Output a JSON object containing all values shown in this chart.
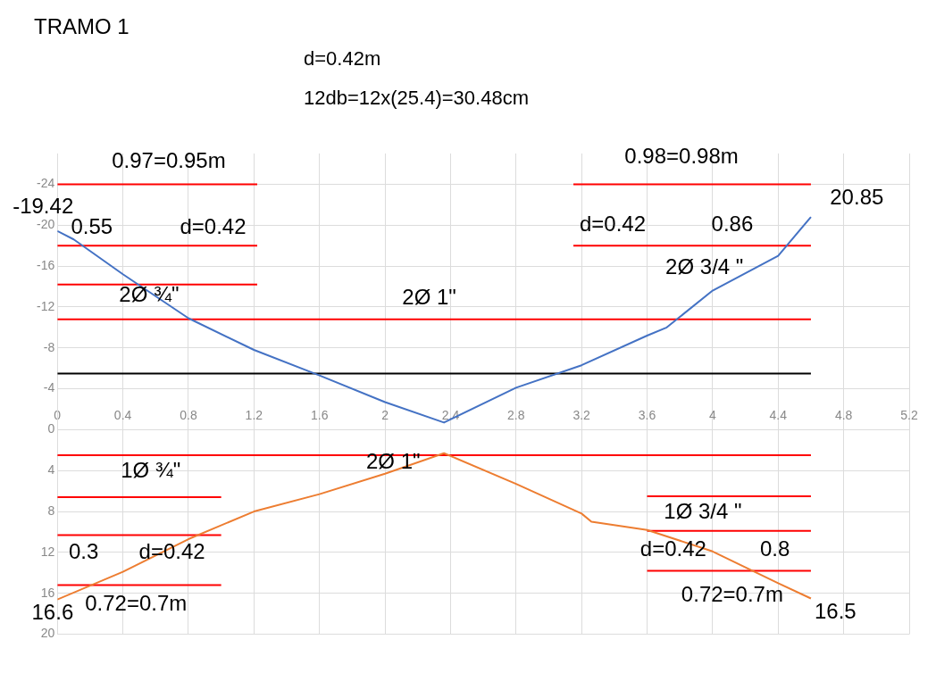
{
  "chart_data": {
    "type": "line",
    "title": "TRAMO 1",
    "subtitle": "d=0.42m\n12db=12x(25.4)=30.48cm",
    "xlim": [
      0,
      5.2
    ],
    "xticks": [
      0,
      0.4,
      0.8,
      1.2,
      1.6,
      2,
      2.4,
      2.8,
      3.2,
      3.6,
      4,
      4.4,
      4.8,
      5.2
    ],
    "ylim": [
      20,
      -27
    ],
    "yticks": [
      -24,
      -20,
      -16,
      -12,
      -8,
      -4,
      0,
      4,
      8,
      12,
      16,
      20
    ],
    "grid": true,
    "legend": false,
    "series": [
      {
        "color": "#4472c4",
        "x": [
          0,
          0.1,
          0.4,
          0.8,
          1.2,
          1.6,
          2,
          2.36,
          2.8,
          3.2,
          3.6,
          3.72,
          4,
          4.4,
          4.6
        ],
        "values": [
          -19.42,
          -18.6,
          -15.2,
          -10.9,
          -7.8,
          -5.3,
          -2.7,
          -0.7,
          -4.1,
          -6.3,
          -9.2,
          -10,
          -13.6,
          -17,
          -20.8
        ],
        "value_labels": [
          "-19.42",
          null,
          null,
          null,
          null,
          null,
          null,
          null,
          null,
          null,
          null,
          null,
          null,
          null,
          null
        ]
      },
      {
        "color": "#ed7d31",
        "x": [
          0,
          0.4,
          0.8,
          1.2,
          1.6,
          2,
          2.36,
          2.8,
          3.2,
          3.26,
          3.6,
          4,
          4.4,
          4.6
        ],
        "values": [
          16.6,
          13.9,
          10.7,
          8,
          6.3,
          4.3,
          2.3,
          5.3,
          8.2,
          9,
          9.8,
          11.9,
          15,
          16.5
        ],
        "value_labels": [
          "16.6",
          null,
          null,
          null,
          null,
          null,
          null,
          null,
          null,
          null,
          null,
          null,
          null,
          "16.5"
        ]
      },
      {
        "color": "#000000",
        "x": [
          0,
          4.6
        ],
        "values": [
          -5.5,
          -5.5
        ]
      },
      {
        "color": "#ff0000",
        "x": [
          0,
          1.22
        ],
        "values": [
          -24,
          -24
        ]
      },
      {
        "color": "#ff0000",
        "x": [
          0,
          1.22
        ],
        "values": [
          -18,
          -18
        ]
      },
      {
        "color": "#ff0000",
        "x": [
          0,
          1.22
        ],
        "values": [
          -14.2,
          -14.2
        ]
      },
      {
        "color": "#ff0000",
        "x": [
          0,
          4.6
        ],
        "values": [
          -10.8,
          -10.8
        ]
      },
      {
        "color": "#ff0000",
        "x": [
          3.15,
          4.6
        ],
        "values": [
          -24,
          -24
        ]
      },
      {
        "color": "#ff0000",
        "x": [
          3.15,
          4.6
        ],
        "values": [
          -18,
          -18
        ]
      },
      {
        "color": "#ff0000",
        "x": [
          0,
          4.6
        ],
        "values": [
          2.5,
          2.5
        ]
      },
      {
        "color": "#ff0000",
        "x": [
          0,
          1
        ],
        "values": [
          6.6,
          6.6
        ]
      },
      {
        "color": "#ff0000",
        "x": [
          0,
          1
        ],
        "values": [
          10.3,
          10.3
        ]
      },
      {
        "color": "#ff0000",
        "x": [
          0,
          1
        ],
        "values": [
          15.2,
          15.2
        ]
      },
      {
        "color": "#ff0000",
        "x": [
          3.6,
          4.6
        ],
        "values": [
          6.5,
          6.5
        ]
      },
      {
        "color": "#ff0000",
        "x": [
          3.6,
          4.6
        ],
        "values": [
          9.9,
          9.9
        ]
      },
      {
        "color": "#ff0000",
        "x": [
          3.6,
          4.6
        ],
        "values": [
          13.8,
          13.8
        ]
      }
    ],
    "annotations": [
      "0.97=0.95m",
      "0.98=0.98m",
      "0.55",
      "d=0.42",
      "2Ø ¾\"",
      "2Ø 1\"",
      "d=0.42",
      "0.86",
      "2Ø 3/4 \"",
      "1Ø ¾\"",
      "2Ø 1\"",
      "0.3",
      "d=0.42",
      "0.72=0.7m",
      "1Ø 3/4 \"",
      "d=0.42",
      "0.8",
      "0.72=0.7m",
      "20.85"
    ]
  }
}
